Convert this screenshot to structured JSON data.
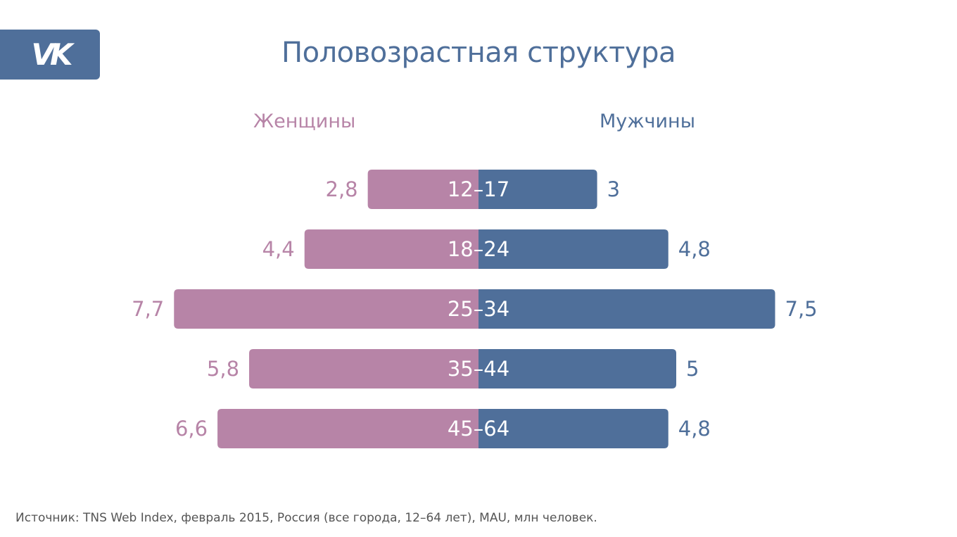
{
  "logo": {
    "text": "VK"
  },
  "title": "Половозрастная структура",
  "colors": {
    "women": "#b784a7",
    "men": "#4f6f9a",
    "title": "#4f6f9a",
    "bar_label": "#ffffff"
  },
  "legend": {
    "women": "Женщины",
    "men": "Мужчины"
  },
  "chart_data": {
    "type": "bar",
    "title": "Половозрастная структура",
    "categories": [
      "12–17",
      "18–24",
      "25–34",
      "35–44",
      "45–64"
    ],
    "series": [
      {
        "name": "Женщины",
        "values": [
          2.8,
          4.4,
          7.7,
          5.8,
          6.6
        ],
        "labels": [
          "2,8",
          "4,4",
          "7,7",
          "5,8",
          "6,6"
        ]
      },
      {
        "name": "Мужчины",
        "values": [
          3,
          4.8,
          7.5,
          5,
          4.8
        ],
        "labels": [
          "3",
          "4,8",
          "7,5",
          "5",
          "4,8"
        ]
      }
    ],
    "orientation": "horizontal-diverging",
    "legend_placement": "top",
    "grid": false
  },
  "source": "Источник: TNS Web Index, февраль 2015, Россия (все города, 12–64 лет), MAU, млн человек."
}
